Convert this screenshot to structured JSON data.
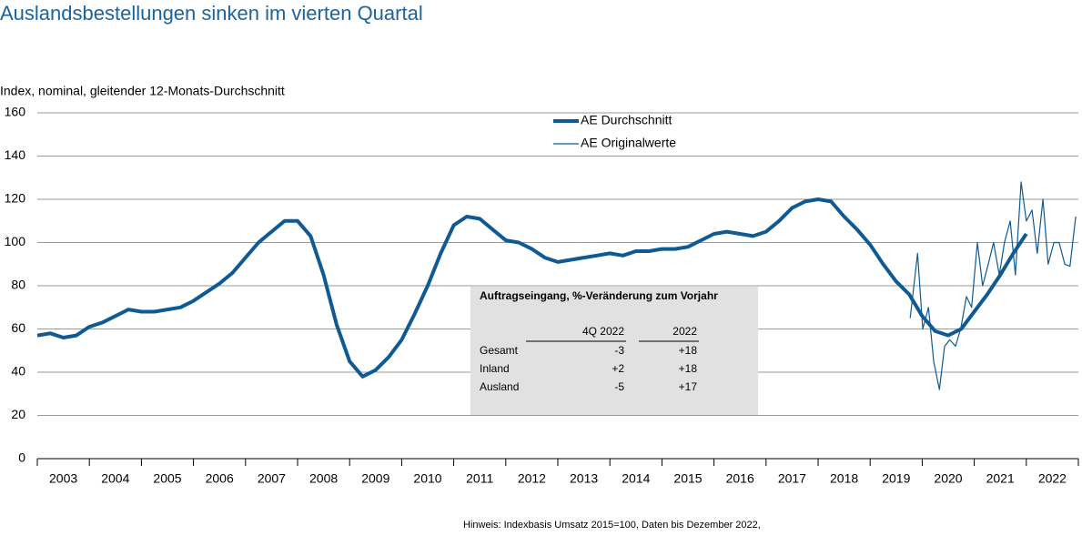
{
  "chart_data": {
    "type": "line",
    "title": "Auslandsbestellungen sinken im vierten Quartal",
    "y_label": "Index, nominal, gleitender 12-Monats-Durchschnitt",
    "footnote": "Hinweis: Indexbasis Umsatz 2015=100, Daten bis Dezember 2022,",
    "xlim": [
      2003,
      2023
    ],
    "xticks": [
      {
        "value": 2003.5,
        "label": "2003"
      },
      {
        "value": 2004.5,
        "label": "2004"
      },
      {
        "value": 2005.5,
        "label": "2005"
      },
      {
        "value": 2006.5,
        "label": "2006"
      },
      {
        "value": 2007.5,
        "label": "2007"
      },
      {
        "value": 2008.5,
        "label": "2008"
      },
      {
        "value": 2009.5,
        "label": "2009"
      },
      {
        "value": 2010.5,
        "label": "2010"
      },
      {
        "value": 2011.5,
        "label": "2011"
      },
      {
        "value": 2012.5,
        "label": "2012"
      },
      {
        "value": 2013.5,
        "label": "2013"
      },
      {
        "value": 2014.5,
        "label": "2014"
      },
      {
        "value": 2015.5,
        "label": "2015"
      },
      {
        "value": 2016.5,
        "label": "2016"
      },
      {
        "value": 2017.5,
        "label": "2017"
      },
      {
        "value": 2018.5,
        "label": "2018"
      },
      {
        "value": 2019.5,
        "label": "2019"
      },
      {
        "value": 2020.5,
        "label": "2020"
      },
      {
        "value": 2021.5,
        "label": "2021"
      },
      {
        "value": 2022.5,
        "label": "2022"
      }
    ],
    "ylim": [
      0,
      160
    ],
    "yticks": [
      0,
      20,
      40,
      60,
      80,
      100,
      120,
      140,
      160
    ],
    "grid": true,
    "legend": "top",
    "series": [
      {
        "name": "AE Durchschnitt",
        "color": "#0f5a92",
        "width": 4,
        "x": [
          2003,
          2003.25,
          2003.5,
          2003.75,
          2004,
          2004.25,
          2004.5,
          2004.75,
          2005,
          2005.25,
          2005.5,
          2005.75,
          2006,
          2006.25,
          2006.5,
          2006.75,
          2007,
          2007.25,
          2007.5,
          2007.75,
          2008,
          2008.25,
          2008.5,
          2008.75,
          2009,
          2009.25,
          2009.5,
          2009.75,
          2010,
          2010.25,
          2010.5,
          2010.75,
          2011,
          2011.25,
          2011.5,
          2011.75,
          2012,
          2012.25,
          2012.5,
          2012.75,
          2013,
          2013.25,
          2013.5,
          2013.75,
          2014,
          2014.25,
          2014.5,
          2014.75,
          2015,
          2015.25,
          2015.5,
          2015.75,
          2016,
          2016.25,
          2016.5,
          2016.75,
          2017,
          2017.25,
          2017.5,
          2017.75,
          2018,
          2018.25,
          2018.5,
          2018.75,
          2019,
          2019.25,
          2019.5,
          2019.75,
          2020,
          2020.25,
          2020.5,
          2020.75,
          2021,
          2021.25,
          2021.5,
          2021.75,
          2022
        ],
        "values": [
          57,
          58,
          56,
          57,
          61,
          63,
          66,
          69,
          68,
          68,
          69,
          70,
          73,
          77,
          81,
          86,
          93,
          100,
          105,
          110,
          110,
          103,
          85,
          62,
          45,
          38,
          41,
          47,
          55,
          67,
          80,
          95,
          108,
          112,
          111,
          106,
          101,
          100,
          97,
          93,
          91,
          92,
          93,
          94,
          95,
          94,
          96,
          96,
          97,
          97,
          98,
          101,
          104,
          105,
          104,
          103,
          105,
          110,
          116,
          119,
          120,
          119,
          112,
          106,
          99,
          90,
          82,
          76,
          66,
          59,
          57,
          60,
          68,
          76,
          85,
          95,
          104
        ]
      },
      {
        "name": "AE Originalwerte",
        "color": "#0f5a92",
        "width": 1.2,
        "x": [
          2019.77,
          2019.91,
          2020.01,
          2020.12,
          2020.22,
          2020.33,
          2020.43,
          2020.53,
          2020.64,
          2020.74,
          2020.85,
          2020.95,
          2021.06,
          2021.16,
          2021.27,
          2021.37,
          2021.48,
          2021.58,
          2021.69,
          2021.79,
          2021.9,
          2022,
          2022.11,
          2022.21,
          2022.32,
          2022.42,
          2022.53,
          2022.63,
          2022.74,
          2022.84,
          2022.95
        ],
        "values": [
          65,
          95,
          60,
          70,
          45,
          32,
          52,
          55,
          52,
          60,
          75,
          70,
          100,
          80,
          90,
          100,
          85,
          100,
          110,
          85,
          128,
          110,
          115,
          95,
          120,
          90,
          100,
          100,
          90,
          89,
          112
        ]
      }
    ],
    "table": {
      "title": "Auftragseingang, %-Veränderung zum Vorjahr",
      "columns": [
        "4Q 2022",
        "2022"
      ],
      "rows": [
        [
          "Gesamt",
          "-3",
          "+18"
        ],
        [
          "Inland",
          "+2",
          "+18"
        ],
        [
          "Ausland",
          "-5",
          "+17"
        ]
      ]
    }
  }
}
